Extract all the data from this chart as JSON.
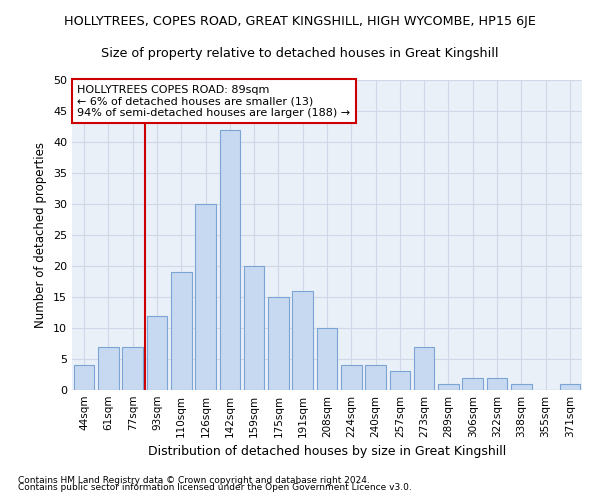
{
  "title": "HOLLYTREES, COPES ROAD, GREAT KINGSHILL, HIGH WYCOMBE, HP15 6JE",
  "subtitle": "Size of property relative to detached houses in Great Kingshill",
  "xlabel": "Distribution of detached houses by size in Great Kingshill",
  "ylabel": "Number of detached properties",
  "categories": [
    "44sqm",
    "61sqm",
    "77sqm",
    "93sqm",
    "110sqm",
    "126sqm",
    "142sqm",
    "159sqm",
    "175sqm",
    "191sqm",
    "208sqm",
    "224sqm",
    "240sqm",
    "257sqm",
    "273sqm",
    "289sqm",
    "306sqm",
    "322sqm",
    "338sqm",
    "355sqm",
    "371sqm"
  ],
  "values": [
    4,
    7,
    7,
    12,
    19,
    30,
    42,
    20,
    15,
    16,
    10,
    4,
    4,
    3,
    7,
    1,
    2,
    2,
    1,
    0,
    1
  ],
  "bar_color": "#c7d9f0",
  "bar_edge_color": "#7ba4d4",
  "vline_color": "#cc0000",
  "vline_index": 2,
  "annotation_text": "HOLLYTREES COPES ROAD: 89sqm\n← 6% of detached houses are smaller (13)\n94% of semi-detached houses are larger (188) →",
  "annotation_box_color": "#ffffff",
  "annotation_box_edge_color": "#cc0000",
  "ylim": [
    0,
    50
  ],
  "yticks": [
    0,
    5,
    10,
    15,
    20,
    25,
    30,
    35,
    40,
    45,
    50
  ],
  "grid_color": "#d0d8e8",
  "footnote1": "Contains HM Land Registry data © Crown copyright and database right 2024.",
  "footnote2": "Contains public sector information licensed under the Open Government Licence v3.0.",
  "bg_color": "#eaf0f8"
}
